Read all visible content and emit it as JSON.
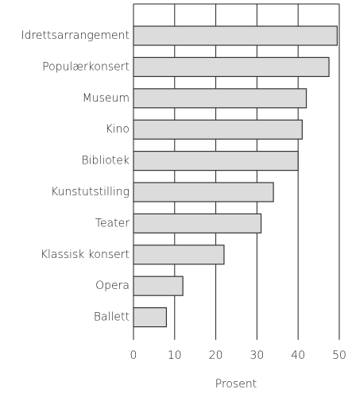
{
  "chart_data": {
    "type": "bar",
    "orientation": "horizontal",
    "categories": [
      "Idrettsarrangement",
      "Populærkonsert",
      "Museum",
      "Kino",
      "Bibliotek",
      "Kunstutstilling",
      "Teater",
      "Klassisk konsert",
      "Opera",
      "Ballett"
    ],
    "values": [
      49.5,
      47.5,
      42,
      41,
      40,
      34,
      31,
      22,
      12,
      8
    ],
    "color": "#dcdcdc",
    "xlim": [
      0,
      50
    ],
    "xticks": [
      0,
      10,
      20,
      30,
      40,
      50
    ],
    "x_label": "Prosent",
    "grid": true
  }
}
